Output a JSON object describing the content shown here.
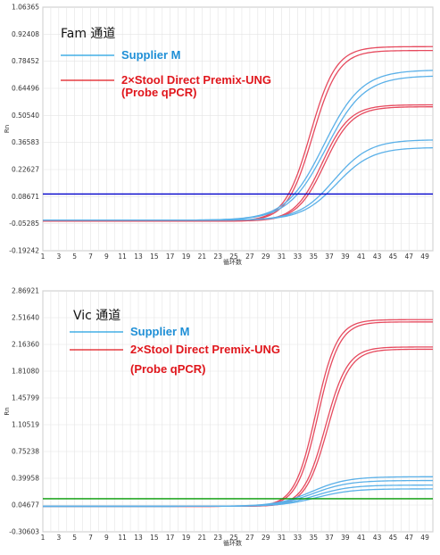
{
  "chart_data": [
    {
      "type": "line",
      "channel_title": "Fam 通道",
      "xlabel": "循环数",
      "ylabel": "Rn",
      "x_ticks": [
        1,
        3,
        5,
        7,
        9,
        11,
        13,
        15,
        17,
        19,
        21,
        23,
        25,
        27,
        29,
        31,
        33,
        35,
        37,
        39,
        41,
        43,
        45,
        47,
        49
      ],
      "y_ticks": [
        "1.06365",
        "0.92408",
        "0.78452",
        "0.64496",
        "0.50540",
        "0.36583",
        "0.22627",
        "0.08671",
        "-0.05285",
        "-0.19242"
      ],
      "xlim": [
        1,
        50
      ],
      "ylim": [
        -0.19242,
        1.06365
      ],
      "grid": true,
      "threshold": 0.1,
      "threshold_color": "#0000cc",
      "legend": [
        {
          "label": "Supplier M",
          "color": "#1f9fe0"
        },
        {
          "label": "2×Stool Direct Premix-UNG",
          "color": "#e0161c"
        },
        {
          "label": "(Probe qPCR)",
          "color": "#e0161c"
        }
      ],
      "series": [
        {
          "group": "2×Stool Direct Premix-UNG",
          "color": "#e64a5e",
          "plateau": 0.86,
          "midpoint": 34.6,
          "slope": 0.62,
          "baseline": -0.04
        },
        {
          "group": "2×Stool Direct Premix-UNG",
          "color": "#e64a5e",
          "plateau": 0.84,
          "midpoint": 34.9,
          "slope": 0.62,
          "baseline": -0.04
        },
        {
          "group": "2×Stool Direct Premix-UNG",
          "color": "#e64a5e",
          "plateau": 0.56,
          "midpoint": 36.1,
          "slope": 0.58,
          "baseline": -0.04
        },
        {
          "group": "2×Stool Direct Premix-UNG",
          "color": "#e64a5e",
          "plateau": 0.55,
          "midpoint": 36.4,
          "slope": 0.58,
          "baseline": -0.04
        },
        {
          "group": "Supplier M",
          "color": "#5ab0e8",
          "plateau": 0.74,
          "midpoint": 36.3,
          "slope": 0.42,
          "baseline": -0.035
        },
        {
          "group": "Supplier M",
          "color": "#5ab0e8",
          "plateau": 0.71,
          "midpoint": 36.6,
          "slope": 0.42,
          "baseline": -0.035
        },
        {
          "group": "Supplier M",
          "color": "#5ab0e8",
          "plateau": 0.38,
          "midpoint": 37.6,
          "slope": 0.45,
          "baseline": -0.035
        },
        {
          "group": "Supplier M",
          "color": "#5ab0e8",
          "plateau": 0.34,
          "midpoint": 37.9,
          "slope": 0.45,
          "baseline": -0.035
        }
      ]
    },
    {
      "type": "line",
      "channel_title": "Vic 通道",
      "xlabel": "循环数",
      "ylabel": "Rn",
      "x_ticks": [
        1,
        3,
        5,
        7,
        9,
        11,
        13,
        15,
        17,
        19,
        21,
        23,
        25,
        27,
        29,
        31,
        33,
        35,
        37,
        39,
        41,
        43,
        45,
        47,
        49
      ],
      "y_ticks": [
        "2.86921",
        "2.51640",
        "2.16360",
        "1.81080",
        "1.45799",
        "1.10519",
        "0.75238",
        "0.39958",
        "0.04677",
        "-0.30603"
      ],
      "xlim": [
        1,
        50
      ],
      "ylim": [
        -0.30603,
        2.86921
      ],
      "grid": true,
      "threshold": 0.13,
      "threshold_color": "#009900",
      "legend": [
        {
          "label": "Supplier M",
          "color": "#1f9fe0"
        },
        {
          "label": "2×Stool Direct Premix-UNG",
          "color": "#e0161c"
        },
        {
          "label": "(Probe qPCR)",
          "color": "#e0161c"
        }
      ],
      "series": [
        {
          "group": "2×Stool Direct Premix-UNG",
          "color": "#e64a5e",
          "plateau": 2.49,
          "midpoint": 35.3,
          "slope": 0.75,
          "baseline": 0.03
        },
        {
          "group": "2×Stool Direct Premix-UNG",
          "color": "#e64a5e",
          "plateau": 2.46,
          "midpoint": 35.6,
          "slope": 0.75,
          "baseline": 0.03
        },
        {
          "group": "2×Stool Direct Premix-UNG",
          "color": "#e64a5e",
          "plateau": 2.13,
          "midpoint": 36.5,
          "slope": 0.72,
          "baseline": 0.03
        },
        {
          "group": "2×Stool Direct Premix-UNG",
          "color": "#e64a5e",
          "plateau": 2.1,
          "midpoint": 36.8,
          "slope": 0.72,
          "baseline": 0.03
        },
        {
          "group": "Supplier M",
          "color": "#5ab0e8",
          "plateau": 0.42,
          "midpoint": 34.8,
          "slope": 0.45,
          "baseline": 0.03
        },
        {
          "group": "Supplier M",
          "color": "#5ab0e8",
          "plateau": 0.37,
          "midpoint": 35.0,
          "slope": 0.45,
          "baseline": 0.03
        },
        {
          "group": "Supplier M",
          "color": "#5ab0e8",
          "plateau": 0.31,
          "midpoint": 35.2,
          "slope": 0.45,
          "baseline": 0.03
        },
        {
          "group": "Supplier M",
          "color": "#5ab0e8",
          "plateau": 0.26,
          "midpoint": 35.4,
          "slope": 0.45,
          "baseline": 0.03
        }
      ]
    }
  ]
}
